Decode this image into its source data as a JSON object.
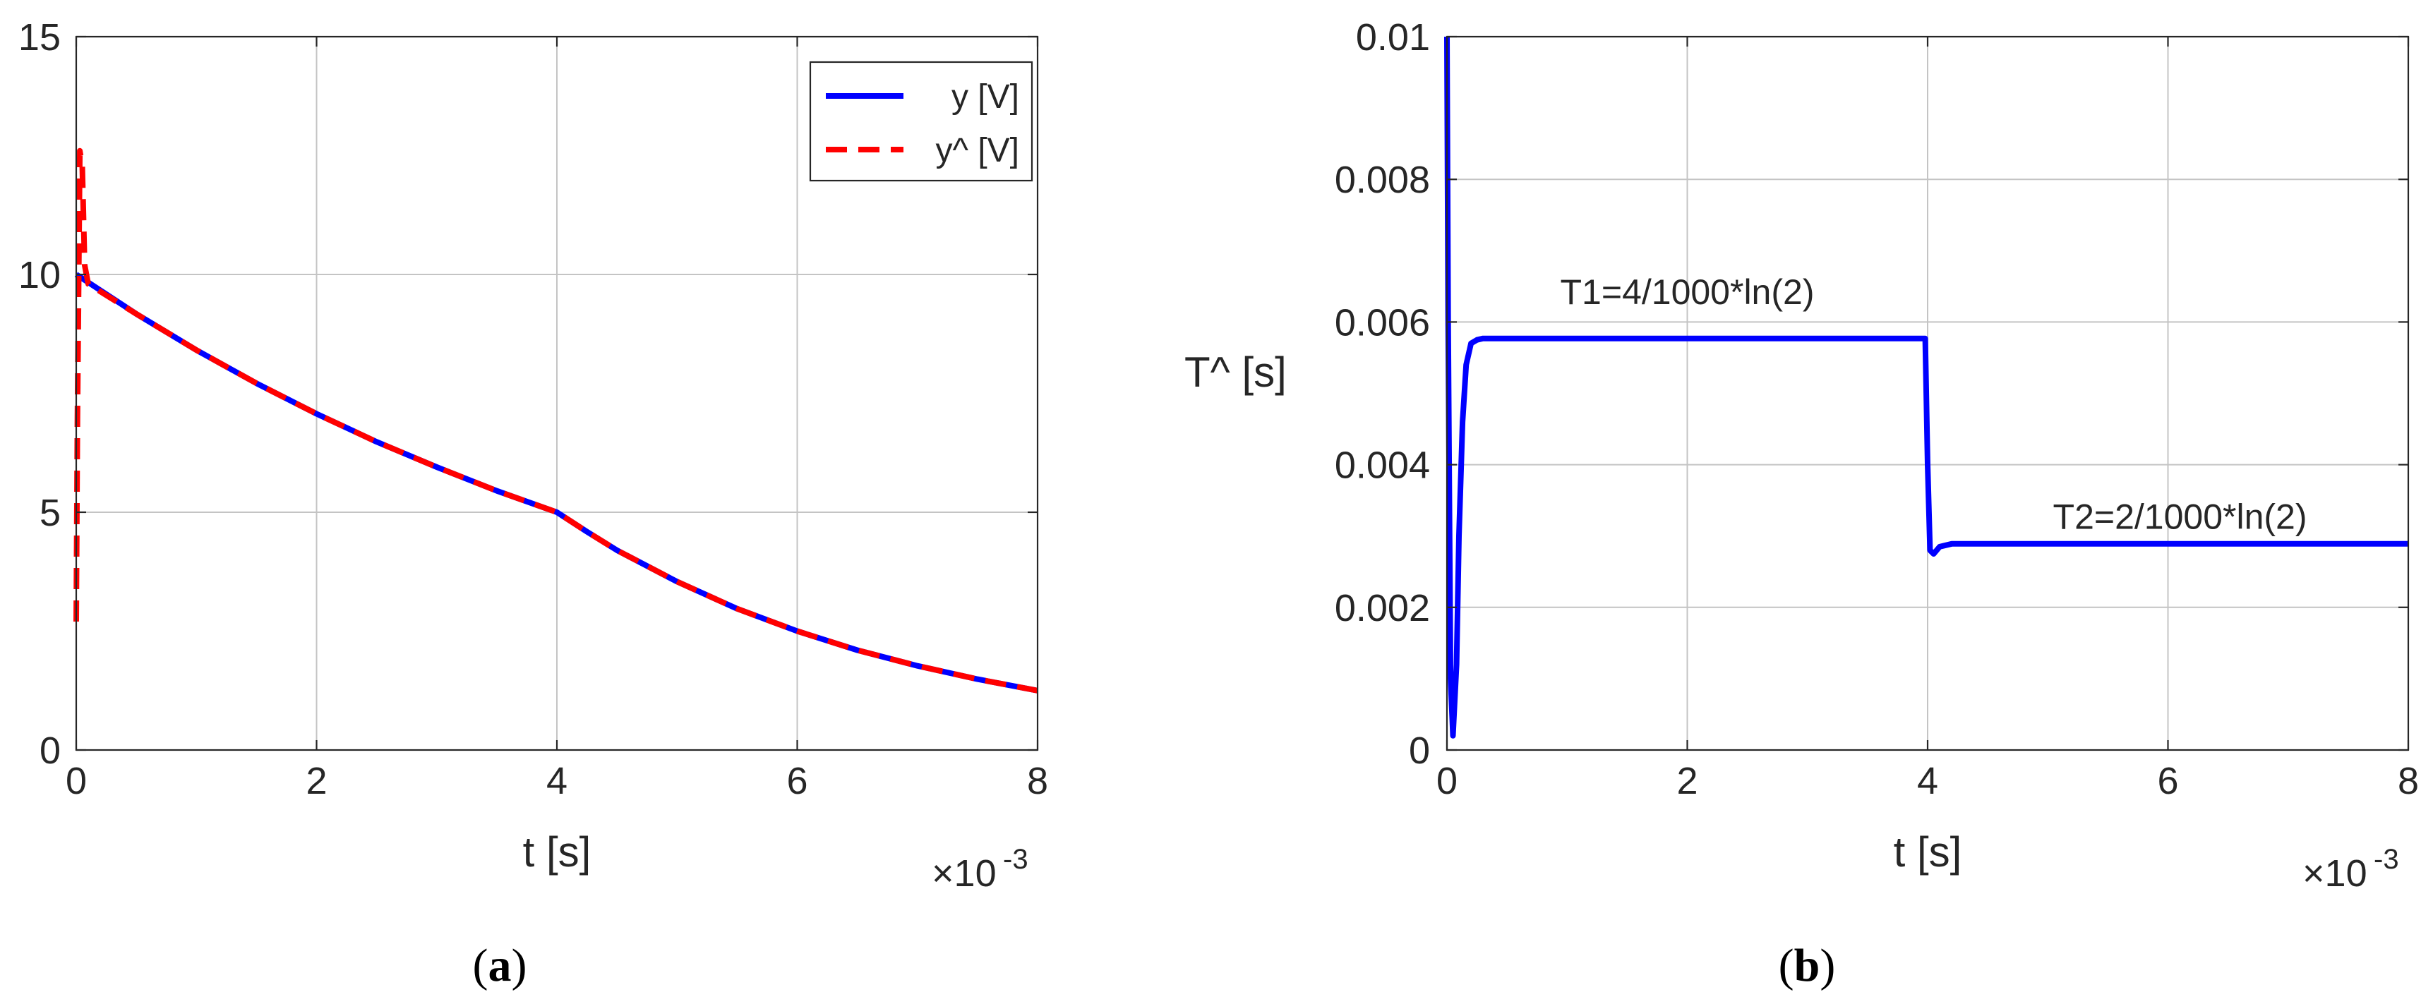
{
  "chart_data": [
    {
      "type": "line",
      "panel_label": "a",
      "xlabel": "t [s]",
      "ylabel": "",
      "x_multiplier": "×10",
      "x_multiplier_exponent": "-3",
      "xlim": [
        0,
        8
      ],
      "ylim": [
        0,
        15
      ],
      "xticks": [
        "0",
        "2",
        "4",
        "6",
        "8"
      ],
      "xtick_values": [
        0,
        2,
        4,
        6,
        8
      ],
      "yticks": [
        "0",
        "5",
        "10",
        "15"
      ],
      "ytick_values": [
        0,
        5,
        10,
        15
      ],
      "grid": true,
      "legend_position": "top-right",
      "legend_entries": [
        "y [V]",
        "y^ [V]"
      ],
      "series": [
        {
          "name": "y [V]",
          "color": "#0000ff",
          "style": "solid",
          "x": [
            0.0,
            0.5,
            1.0,
            1.5,
            2.0,
            2.5,
            3.0,
            3.5,
            4.0,
            4.25,
            4.5,
            5.0,
            5.5,
            6.0,
            6.5,
            7.0,
            7.5,
            8.0
          ],
          "y": [
            10.0,
            9.17,
            8.41,
            7.71,
            7.07,
            6.48,
            5.95,
            5.45,
            5.0,
            4.59,
            4.2,
            3.54,
            2.97,
            2.5,
            2.1,
            1.77,
            1.49,
            1.25
          ]
        },
        {
          "name": "y^ [V]",
          "color": "#ff0000",
          "style": "dashed",
          "x": [
            0.0,
            0.01,
            0.03,
            0.05,
            0.07,
            0.1,
            0.5,
            1.0,
            1.5,
            2.0,
            2.5,
            3.0,
            3.5,
            4.0,
            4.25,
            4.5,
            5.0,
            5.5,
            6.0,
            6.5,
            7.0,
            7.5,
            8.0
          ],
          "y": [
            2.7,
            7.0,
            12.6,
            12.3,
            10.2,
            9.8,
            9.17,
            8.41,
            7.71,
            7.07,
            6.48,
            5.95,
            5.45,
            5.0,
            4.59,
            4.2,
            3.54,
            2.97,
            2.5,
            2.1,
            1.77,
            1.49,
            1.25
          ]
        }
      ]
    },
    {
      "type": "line",
      "panel_label": "b",
      "xlabel": "t [s]",
      "ylabel": "T^ [s]",
      "x_multiplier": "×10",
      "x_multiplier_exponent": "-3",
      "xlim": [
        0,
        8
      ],
      "ylim": [
        0,
        0.01
      ],
      "xticks": [
        "0",
        "2",
        "4",
        "6",
        "8"
      ],
      "xtick_values": [
        0,
        2,
        4,
        6,
        8
      ],
      "yticks": [
        "0",
        "0.002",
        "0.004",
        "0.006",
        "0.008",
        "0.01"
      ],
      "ytick_values": [
        0,
        0.002,
        0.004,
        0.006,
        0.008,
        0.01
      ],
      "grid": true,
      "annotations": [
        {
          "text": "T1=4/1000*ln(2)",
          "x": 2.0,
          "y": 0.00625
        },
        {
          "text": "T2=2/1000*ln(2)",
          "x": 6.1,
          "y": 0.0031
        }
      ],
      "series": [
        {
          "name": "",
          "color": "#0000ff",
          "style": "solid",
          "x": [
            0.0,
            0.01,
            0.03,
            0.05,
            0.08,
            0.1,
            0.13,
            0.16,
            0.2,
            0.25,
            0.3,
            0.5,
            1.0,
            2.0,
            3.0,
            3.98,
            4.0,
            4.02,
            4.05,
            4.1,
            4.2,
            4.3,
            5.0,
            6.0,
            7.0,
            8.0
          ],
          "y": [
            0.01,
            0.006,
            0.001,
            0.0002,
            0.0012,
            0.003,
            0.0046,
            0.0054,
            0.0057,
            0.00575,
            0.00577,
            0.00577,
            0.00577,
            0.00577,
            0.00577,
            0.00577,
            0.004,
            0.0028,
            0.00275,
            0.00285,
            0.00289,
            0.00289,
            0.00289,
            0.00289,
            0.00289,
            0.00289
          ]
        }
      ]
    }
  ]
}
